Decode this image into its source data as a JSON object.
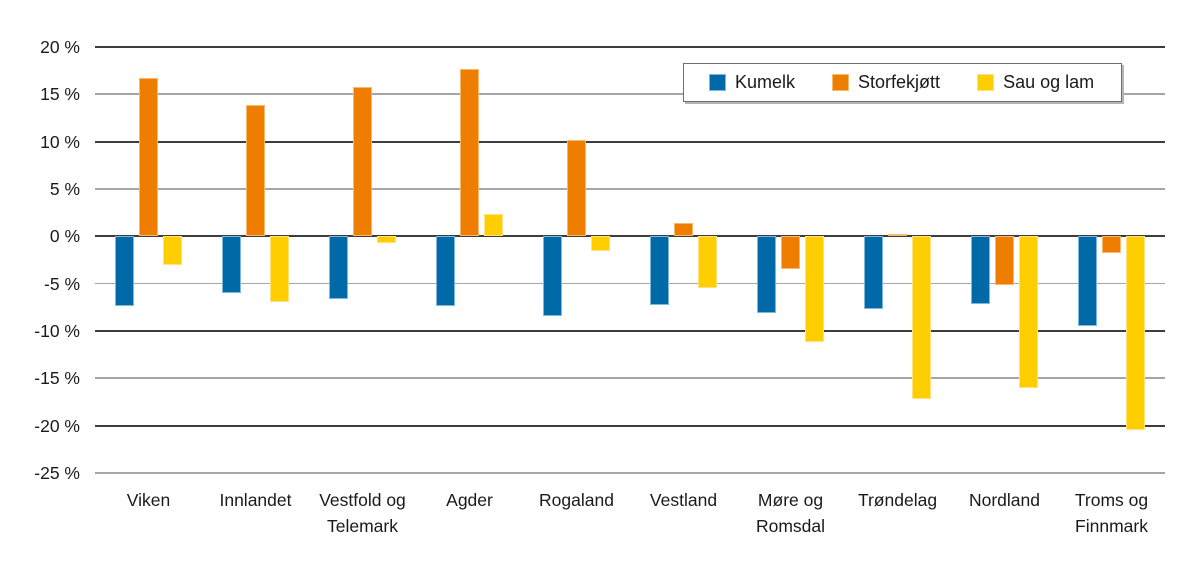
{
  "chart_data": {
    "type": "bar",
    "title": "",
    "xlabel": "",
    "ylabel": "",
    "categories": [
      "Viken",
      "Innlandet",
      "Vestfold og Telemark",
      "Agder",
      "Rogaland",
      "Vestland",
      "Møre og Romsdal",
      "Trøndelag",
      "Nordland",
      "Troms og Finnmark"
    ],
    "series": [
      {
        "name": "Kumelk",
        "color": "#0069A8",
        "border_color": "#7FB8DE",
        "values": [
          -7.4,
          -6.0,
          -6.6,
          -7.4,
          -8.4,
          -7.3,
          -8.1,
          -7.7,
          -7.1,
          -9.5
        ]
      },
      {
        "name": "Storfekjøtt",
        "color": "#EF7D00",
        "border_color": "#F6B96E",
        "values": [
          16.7,
          13.9,
          15.8,
          17.7,
          10.2,
          1.4,
          -3.5,
          0.2,
          -5.1,
          -1.8
        ]
      },
      {
        "name": "Sau og lam",
        "color": "#FFCE00",
        "border_color": "#FFE27E",
        "values": [
          -3.0,
          -6.9,
          -0.7,
          2.4,
          -1.5,
          -5.5,
          -11.2,
          -17.2,
          -16.0,
          -20.5
        ]
      }
    ],
    "ylim": [
      -25,
      20
    ],
    "y_ticks": [
      {
        "value": 20,
        "label": "20 %"
      },
      {
        "value": 15,
        "label": "15 %"
      },
      {
        "value": 10,
        "label": "10 %"
      },
      {
        "value": 5,
        "label": "5 %"
      },
      {
        "value": 0,
        "label": "0 %"
      },
      {
        "value": -5,
        "label": "-5 %"
      },
      {
        "value": -10,
        "label": "-10 %"
      },
      {
        "value": -15,
        "label": "-15 %"
      },
      {
        "value": -20,
        "label": "-20 %"
      },
      {
        "value": -25,
        "label": "-25 %"
      }
    ],
    "grid": true,
    "grid_style": {
      "major_every": 10,
      "major_color": "#3D3D3D",
      "minor_color": "#A6A6A6"
    },
    "legend_position": "top-right",
    "legend_items": [
      "Kumelk",
      "Storfekjøtt",
      "Sau og lam"
    ],
    "background_color": "#FFFFFF",
    "text_color": "#1A1A1A"
  }
}
